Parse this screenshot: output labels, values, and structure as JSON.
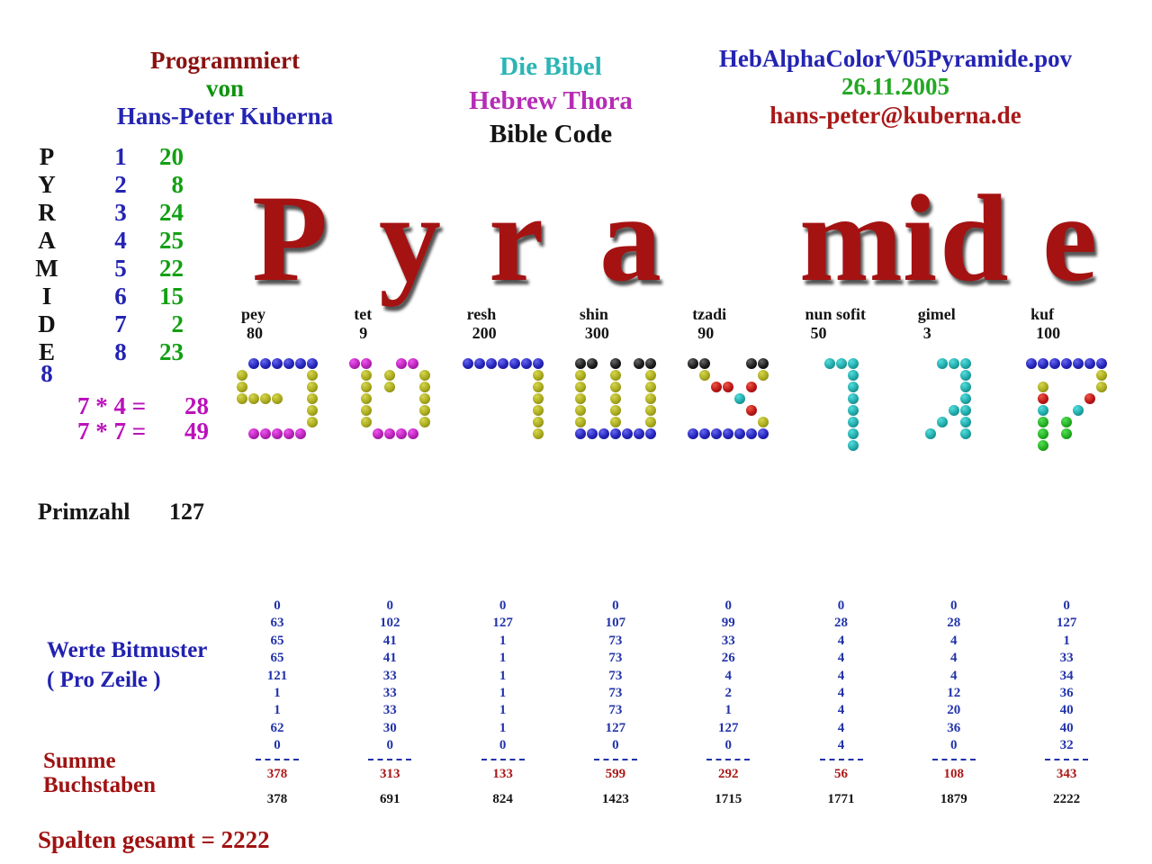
{
  "credit": {
    "line1": "Programmiert",
    "line2": "von",
    "line3": "Hans-Peter Kuberna"
  },
  "title_block": {
    "line1": "Die Bibel",
    "line2": "Hebrew Thora",
    "line3": "Bible Code"
  },
  "file_block": {
    "filename": "HebAlphaColorV05Pyramide.pov",
    "date": "26.11.2005",
    "email": "hans-peter@kuberna.de"
  },
  "pyramide_table": {
    "rows": [
      {
        "letter": "P",
        "index": "1",
        "value": "20"
      },
      {
        "letter": "Y",
        "index": "2",
        "value": "8"
      },
      {
        "letter": "R",
        "index": "3",
        "value": "24"
      },
      {
        "letter": "A",
        "index": "4",
        "value": "25"
      },
      {
        "letter": "M",
        "index": "5",
        "value": "22"
      },
      {
        "letter": "I",
        "index": "6",
        "value": "15"
      },
      {
        "letter": "D",
        "index": "7",
        "value": "2"
      },
      {
        "letter": "E",
        "index": "8",
        "value": "23"
      }
    ],
    "count": "8"
  },
  "formulas": [
    {
      "expr": "7 * 4 =",
      "result": "28"
    },
    {
      "expr": "7 * 7 =",
      "result": "49"
    }
  ],
  "big_title": {
    "text": "Pyramide",
    "groups": [
      "P",
      "y",
      "r",
      "a",
      "mi",
      "d",
      "e"
    ]
  },
  "primzahl": {
    "label": "Primzahl",
    "value": "127"
  },
  "werte_label": {
    "line1": "Werte Bitmuster",
    "line2": "( Pro Zeile )"
  },
  "summe_label": {
    "line1": "Summe",
    "line2": "Buchstaben"
  },
  "total_label": "Spalten gesamt = 2222",
  "ball_palette": {
    "blue": {
      "light": "#6666ee",
      "base": "#2323bb",
      "dark": "#101060"
    },
    "olive": {
      "light": "#d6d650",
      "base": "#a9a91c",
      "dark": "#66660a"
    },
    "magenta": {
      "light": "#ee55ee",
      "base": "#b822b8",
      "dark": "#6e106e"
    },
    "black": {
      "light": "#666666",
      "base": "#1b1b1b",
      "dark": "#000000"
    },
    "red": {
      "light": "#ee5544",
      "base": "#bb1515",
      "dark": "#6e0808"
    },
    "cyan": {
      "light": "#55dddd",
      "base": "#1fa8a8",
      "dark": "#0a6363"
    },
    "green": {
      "light": "#55dd55",
      "base": "#22b022",
      "dark": "#0a660a"
    }
  },
  "letters": [
    {
      "name": "pey",
      "value": "80",
      "bits": [
        0,
        63,
        65,
        65,
        121,
        1,
        1,
        62,
        0
      ],
      "row_colors": [
        "",
        "blue",
        "olive",
        "olive",
        "olive",
        "olive",
        "olive",
        "magenta",
        ""
      ],
      "sum": "378",
      "cumulative": "378"
    },
    {
      "name": "tet",
      "value": "9",
      "bits": [
        0,
        102,
        41,
        41,
        33,
        33,
        33,
        30,
        0
      ],
      "row_colors": [
        "",
        "magenta",
        "olive",
        "olive",
        "olive",
        "olive",
        "olive",
        "magenta",
        ""
      ],
      "sum": "313",
      "cumulative": "691"
    },
    {
      "name": "resh",
      "value": "200",
      "bits": [
        0,
        127,
        1,
        1,
        1,
        1,
        1,
        1,
        0
      ],
      "row_colors": [
        "",
        "blue",
        "olive",
        "olive",
        "olive",
        "olive",
        "olive",
        "olive",
        ""
      ],
      "sum": "133",
      "cumulative": "824"
    },
    {
      "name": "shin",
      "value": "300",
      "bits": [
        0,
        107,
        73,
        73,
        73,
        73,
        73,
        127,
        0
      ],
      "row_colors": [
        "",
        "black",
        "olive",
        "olive",
        "olive",
        "olive",
        "olive",
        "blue",
        ""
      ],
      "sum": "599",
      "cumulative": "1423"
    },
    {
      "name": "tzadi",
      "value": "90",
      "bits": [
        0,
        99,
        33,
        26,
        4,
        2,
        1,
        127,
        0
      ],
      "row_colors": [
        "",
        "black",
        "olive",
        "red",
        "cyan",
        "red",
        "olive",
        "blue",
        ""
      ],
      "sum": "292",
      "cumulative": "1715"
    },
    {
      "name": "nun sofit",
      "value": "50",
      "bits": [
        0,
        28,
        4,
        4,
        4,
        4,
        4,
        4,
        4
      ],
      "row_colors": [
        "",
        "cyan",
        "cyan",
        "cyan",
        "cyan",
        "cyan",
        "cyan",
        "cyan",
        "cyan"
      ],
      "sum": "56",
      "cumulative": "1771"
    },
    {
      "name": "gimel",
      "value": "3",
      "bits": [
        0,
        28,
        4,
        4,
        4,
        12,
        20,
        36,
        0
      ],
      "row_colors": [
        "",
        "cyan",
        "cyan",
        "cyan",
        "cyan",
        "cyan",
        "cyan",
        "cyan",
        ""
      ],
      "sum": "108",
      "cumulative": "1879"
    },
    {
      "name": "kuf",
      "value": "100",
      "bits": [
        0,
        127,
        1,
        33,
        34,
        36,
        40,
        40,
        32
      ],
      "row_colors": [
        "",
        "blue",
        "olive",
        "olive",
        "red",
        "cyan",
        "green",
        "green",
        "green"
      ],
      "sum": "343",
      "cumulative": "2222"
    }
  ]
}
